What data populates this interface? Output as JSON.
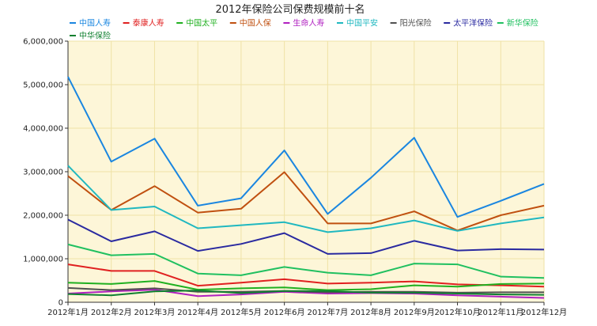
{
  "chart_data": {
    "type": "line",
    "title": "2012年保险公司保费规模前十名",
    "xlabel": "",
    "ylabel": "",
    "categories": [
      "2012年1月",
      "2012年2月",
      "2012年3月",
      "2012年4月",
      "2012年5月",
      "2012年6月",
      "2012年7月",
      "2012年8月",
      "2012年9月",
      "2012年10月",
      "2012年11月",
      "2012年12月"
    ],
    "ylim": [
      0,
      6000000
    ],
    "yticks": [
      0,
      1000000,
      2000000,
      3000000,
      4000000,
      5000000,
      6000000
    ],
    "ytick_labels": [
      "0",
      "1,000,000",
      "2,000,000",
      "3,000,000",
      "4,000,000",
      "5,000,000",
      "6,000,000"
    ],
    "grid": true,
    "legend_position": "top",
    "plot_background": "#fdf6d8",
    "grid_color": "#efe2a6",
    "series": [
      {
        "name": "中国人寿",
        "color": "#1a86e0",
        "values": [
          5180000,
          3230000,
          3760000,
          2220000,
          2390000,
          3490000,
          2030000,
          2860000,
          3780000,
          1960000,
          2330000,
          2720000
        ]
      },
      {
        "name": "泰康人寿",
        "color": "#e02020",
        "values": [
          870000,
          720000,
          720000,
          380000,
          450000,
          530000,
          430000,
          450000,
          480000,
          410000,
          390000,
          360000
        ]
      },
      {
        "name": "中国太平",
        "color": "#20b020",
        "values": [
          450000,
          420000,
          490000,
          290000,
          320000,
          340000,
          280000,
          300000,
          390000,
          360000,
          420000,
          430000
        ]
      },
      {
        "name": "中国人保",
        "color": "#c05010",
        "values": [
          2900000,
          2120000,
          2670000,
          2060000,
          2150000,
          2990000,
          1810000,
          1810000,
          2090000,
          1650000,
          2000000,
          2220000
        ]
      },
      {
        "name": "生命人寿",
        "color": "#b020c0",
        "values": [
          200000,
          250000,
          290000,
          140000,
          180000,
          240000,
          200000,
          210000,
          200000,
          160000,
          130000,
          100000
        ]
      },
      {
        "name": "中国平安",
        "color": "#20b8c0",
        "values": [
          3140000,
          2120000,
          2200000,
          1700000,
          1770000,
          1840000,
          1610000,
          1700000,
          1880000,
          1640000,
          1810000,
          1950000
        ]
      },
      {
        "name": "阳光保险",
        "color": "#505050",
        "values": [
          330000,
          280000,
          320000,
          240000,
          240000,
          260000,
          230000,
          240000,
          240000,
          220000,
          230000,
          230000
        ]
      },
      {
        "name": "太平洋保险",
        "color": "#2a2aa0",
        "values": [
          1900000,
          1400000,
          1630000,
          1180000,
          1340000,
          1590000,
          1110000,
          1130000,
          1410000,
          1190000,
          1220000,
          1210000
        ]
      },
      {
        "name": "新华保险",
        "color": "#20c060",
        "values": [
          1330000,
          1080000,
          1110000,
          660000,
          620000,
          810000,
          680000,
          620000,
          890000,
          870000,
          590000,
          560000
        ]
      },
      {
        "name": "中华保险",
        "color": "#108030",
        "values": [
          190000,
          160000,
          250000,
          270000,
          210000,
          260000,
          260000,
          220000,
          220000,
          200000,
          180000,
          170000
        ]
      }
    ]
  }
}
